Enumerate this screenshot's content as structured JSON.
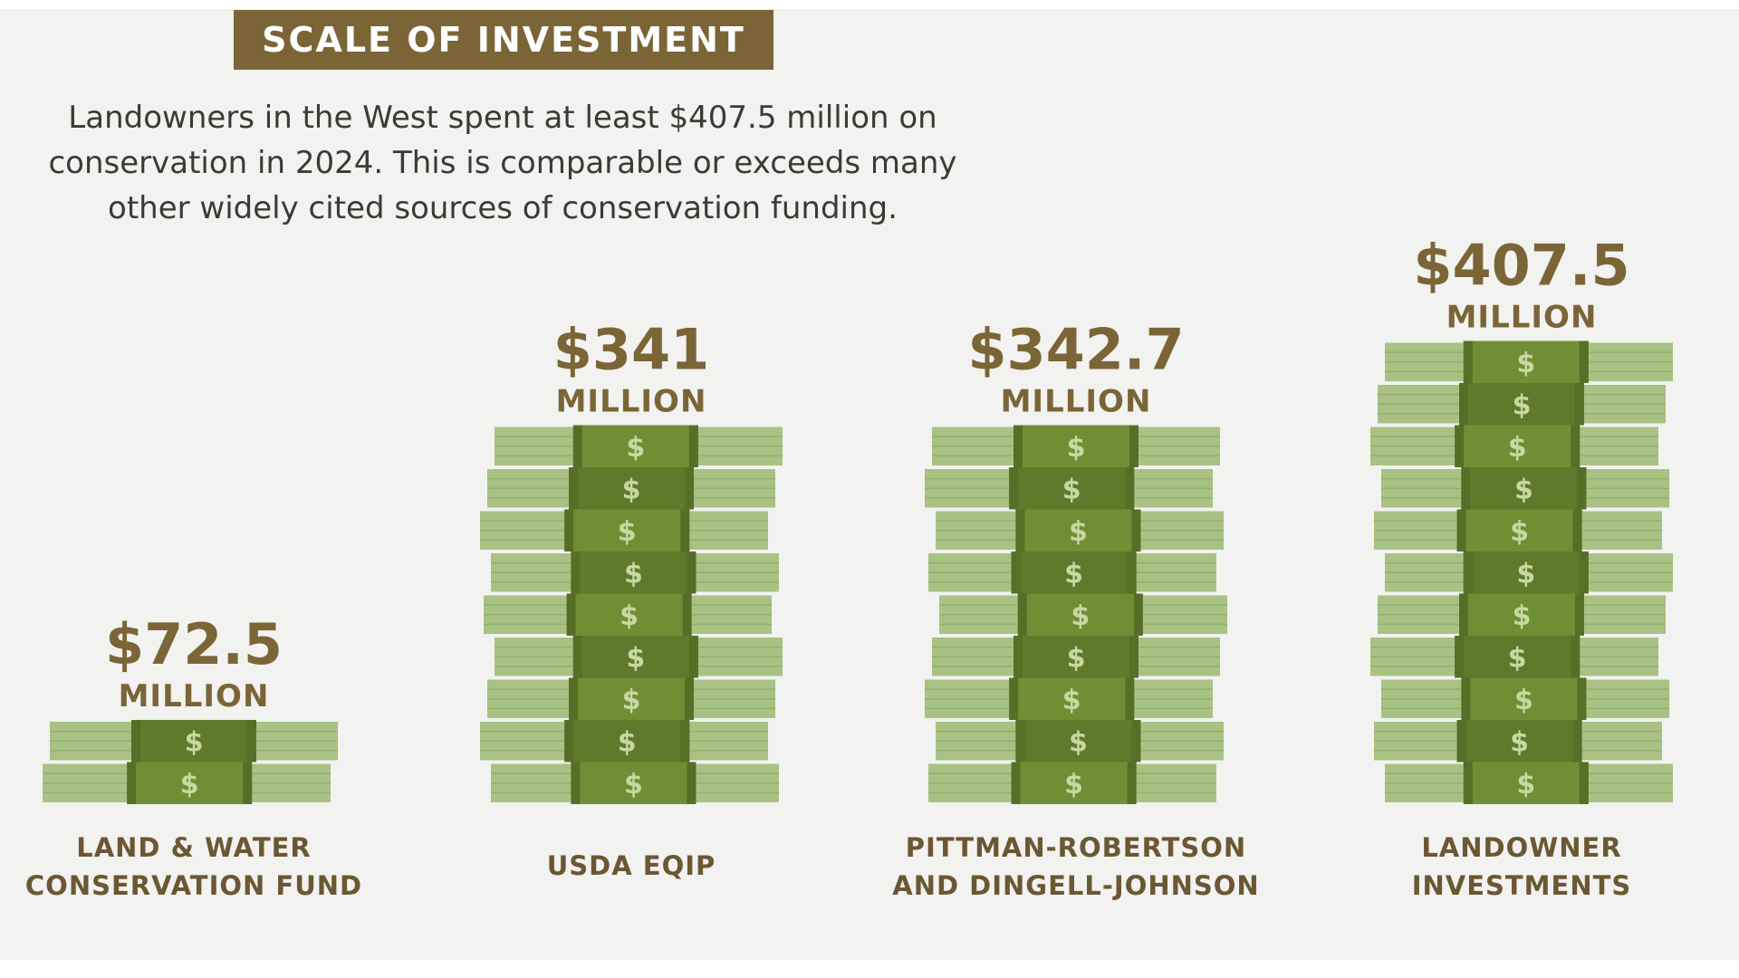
{
  "header": {
    "title": "SCALE OF INVESTMENT",
    "intro_lines": [
      "Landowners in the West spent at least $407.5 million on",
      "conservation in 2024. This is comparable or exceeds many",
      "other widely cited sources of conservation funding."
    ]
  },
  "chart_data": {
    "type": "bar",
    "title": "SCALE OF INVESTMENT",
    "unit": "MILLION",
    "categories": [
      [
        "LAND & WATER",
        "CONSERVATION FUND"
      ],
      [
        "USDA EQIP"
      ],
      [
        "PITTMAN-ROBERTSON",
        "AND DINGELL-JOHNSON"
      ],
      [
        "LANDOWNER",
        "INVESTMENTS"
      ]
    ],
    "values": [
      72.5,
      341,
      342.7,
      407.5
    ],
    "value_labels": [
      "$72.5",
      "$341",
      "$342.7",
      "$407.5"
    ],
    "xlabel": "",
    "ylabel": "",
    "grid": false,
    "legend": "none"
  },
  "colors": {
    "brand_brown": "#7b6537",
    "label_brown": "#6b5733",
    "background": "#f2f2f0",
    "bill_light": "#a8c283",
    "bill_band": "#6f8f35",
    "bill_band_dark": "#566f27",
    "dollar_sign": "#c7d8a2"
  },
  "icons": {
    "bill": "money-stack-icon",
    "dollar": "dollar-sign-icon"
  }
}
